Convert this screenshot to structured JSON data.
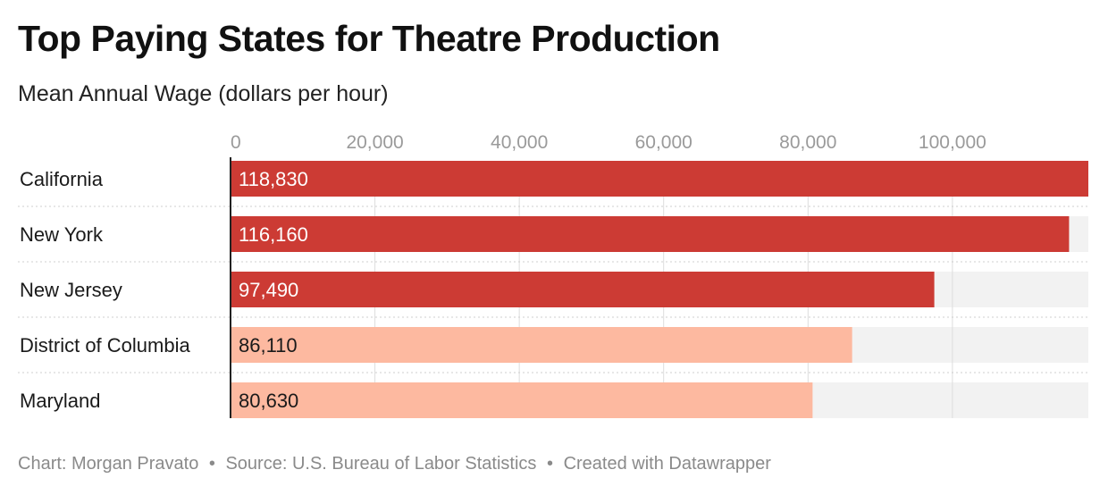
{
  "header": {
    "title": "Top Paying States for Theatre Production",
    "subtitle": "Mean Annual Wage (dollars per hour)"
  },
  "colors": {
    "highlight": "#cc3b34",
    "secondary": "#fdb9a0",
    "track": "#f2f2f2",
    "axis_text": "#9a9a9a",
    "grid": "#dddddd"
  },
  "chart_data": {
    "type": "bar",
    "orientation": "horizontal",
    "categories": [
      "California",
      "New York",
      "New Jersey",
      "District of Columbia",
      "Maryland"
    ],
    "values": [
      118830,
      116160,
      97490,
      86110,
      80630
    ],
    "value_labels": [
      "118,830",
      "116,160",
      "97,490",
      "86,110",
      "80,630"
    ],
    "highlighted": [
      true,
      true,
      true,
      false,
      false
    ],
    "xticks": [
      0,
      20000,
      40000,
      60000,
      80000,
      100000
    ],
    "xtick_labels": [
      "0",
      "20,000",
      "40,000",
      "60,000",
      "80,000",
      "100,000"
    ],
    "xlim": [
      0,
      118830
    ],
    "grid": true,
    "title": "Top Paying States for Theatre Production",
    "subtitle": "Mean Annual Wage (dollars per hour)"
  },
  "footer": {
    "chart_credit": "Chart: Morgan Pravato",
    "source": "Source: U.S. Bureau of Labor Statistics",
    "tool": "Created with Datawrapper",
    "separator": "•"
  }
}
